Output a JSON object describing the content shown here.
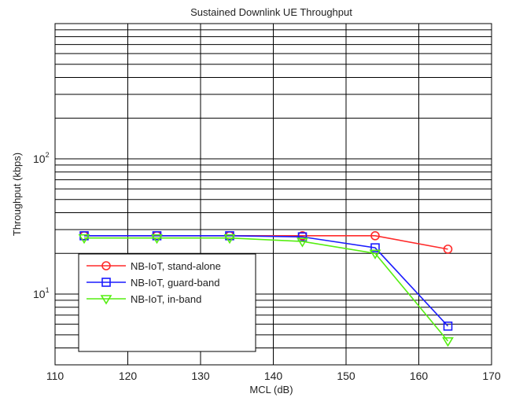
{
  "chart_data": {
    "type": "line",
    "title": "Sustained Downlink UE Throughput",
    "xlabel": "MCL (dB)",
    "ylabel": "Throughput (kbps)",
    "xlim": [
      110,
      170
    ],
    "ylim": [
      3,
      1000
    ],
    "yscale": "log",
    "grid": true,
    "legend_position": "lower-left",
    "x_ticks": [
      110,
      120,
      130,
      140,
      150,
      160,
      170
    ],
    "y_ticks": [
      {
        "value": 10,
        "base": "10",
        "exp": "1"
      },
      {
        "value": 100,
        "base": "10",
        "exp": "2"
      }
    ],
    "x": [
      114,
      124,
      134,
      144,
      154,
      164
    ],
    "series": [
      {
        "name": "NB-IoT, stand-alone",
        "color": "#ff2a2a",
        "marker": "circle",
        "values": [
          27,
          27,
          27,
          27,
          27,
          21.5
        ]
      },
      {
        "name": "NB-IoT, guard-band",
        "color": "#1a1aff",
        "marker": "square",
        "values": [
          27,
          27,
          27,
          26.5,
          22,
          5.8
        ]
      },
      {
        "name": "NB-IoT, in-band",
        "color": "#55ee11",
        "marker": "triangle-down",
        "values": [
          26,
          26,
          26,
          24.5,
          20,
          4.5
        ]
      }
    ]
  }
}
